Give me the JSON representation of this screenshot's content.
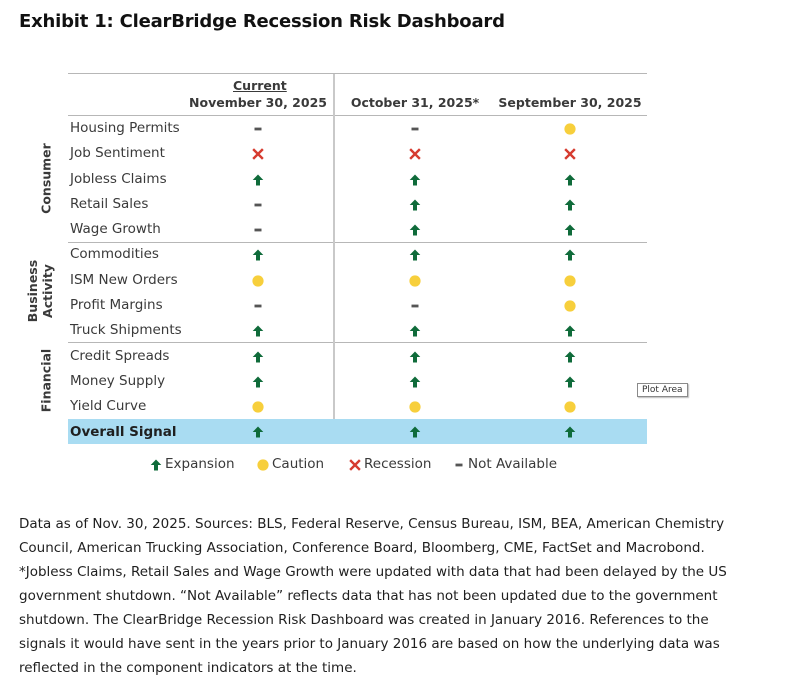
{
  "title": "Exhibit 1: ClearBridge Recession Risk Dashboard",
  "columns": [
    {
      "top": "Current",
      "label": "November 30, 2025"
    },
    {
      "top": "",
      "label": "October 31, 2025*"
    },
    {
      "top": "",
      "label": "September 30, 2025"
    }
  ],
  "groups": [
    {
      "name": "Consumer"
    },
    {
      "name_line1": "Business",
      "name_line2": "Activity"
    },
    {
      "name": "Financial"
    }
  ],
  "rows": [
    {
      "label": "Housing Permits",
      "signals": [
        "not-available",
        "not-available",
        "caution"
      ]
    },
    {
      "label": "Job Sentiment",
      "signals": [
        "recession",
        "recession",
        "recession"
      ]
    },
    {
      "label": "Jobless Claims",
      "signals": [
        "expansion",
        "expansion",
        "expansion"
      ]
    },
    {
      "label": "Retail Sales",
      "signals": [
        "not-available",
        "expansion",
        "expansion"
      ]
    },
    {
      "label": "Wage Growth",
      "signals": [
        "not-available",
        "expansion",
        "expansion"
      ]
    },
    {
      "label": "Commodities",
      "signals": [
        "expansion",
        "expansion",
        "expansion"
      ]
    },
    {
      "label": "ISM New Orders",
      "signals": [
        "caution",
        "caution",
        "caution"
      ]
    },
    {
      "label": "Profit Margins",
      "signals": [
        "not-available",
        "not-available",
        "caution"
      ]
    },
    {
      "label": "Truck Shipments",
      "signals": [
        "expansion",
        "expansion",
        "expansion"
      ]
    },
    {
      "label": "Credit Spreads",
      "signals": [
        "expansion",
        "expansion",
        "expansion"
      ]
    },
    {
      "label": "Money Supply",
      "signals": [
        "expansion",
        "expansion",
        "expansion"
      ]
    },
    {
      "label": "Yield Curve",
      "signals": [
        "caution",
        "caution",
        "caution"
      ]
    }
  ],
  "overall": {
    "label": "Overall Signal",
    "signals": [
      "expansion",
      "expansion",
      "expansion"
    ]
  },
  "legend": [
    {
      "signal": "expansion",
      "label": "Expansion"
    },
    {
      "signal": "caution",
      "label": "Caution"
    },
    {
      "signal": "recession",
      "label": "Recession"
    },
    {
      "signal": "not-available",
      "label": "Not Available"
    }
  ],
  "colors": {
    "expansion": "#0f6b3a",
    "caution": "#f7cf3c",
    "recession": "#d63b2f",
    "not_available": "#555555",
    "overall_highlight": "#a9dcf2"
  },
  "tooltip": "Plot Area",
  "footnote": [
    "Data as of Nov. 30, 2025. Sources: BLS, Federal Reserve, Census Bureau, ISM, BEA, American Chemistry",
    "Council, American Trucking Association, Conference Board, Bloomberg, CME, FactSet and Macrobond.",
    "*Jobless Claims, Retail Sales and Wage Growth were updated with data that had been delayed by the US",
    "government shutdown. “Not Available” reflects data that has not been updated due to the government",
    "shutdown. The ClearBridge Recession Risk Dashboard was created in January 2016. References to the",
    "signals it would have sent in the years prior to January 2016 are based on how the underlying data was",
    "reflected in the component indicators at the time."
  ]
}
